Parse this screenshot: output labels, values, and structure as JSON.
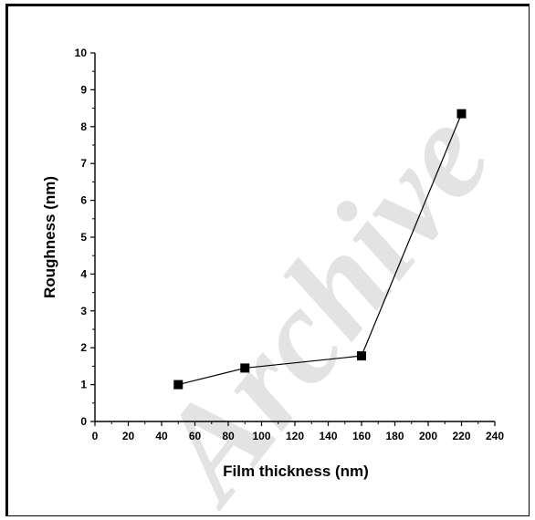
{
  "watermark": "Archive",
  "chart_data": {
    "type": "line",
    "title": "",
    "xlabel": "Film thickness (nm)",
    "ylabel": "Roughness (nm)",
    "xlim": [
      0,
      240
    ],
    "ylim": [
      0,
      10
    ],
    "xticks": [
      0,
      20,
      40,
      60,
      80,
      100,
      120,
      140,
      160,
      180,
      200,
      220,
      240
    ],
    "yticks": [
      0,
      1,
      2,
      3,
      4,
      5,
      6,
      7,
      8,
      9,
      10
    ],
    "grid": false,
    "legend": "none",
    "marker": "square",
    "colors": {
      "line": "#000000",
      "marker": "#000000",
      "watermark": "#e3e3e3"
    },
    "series": [
      {
        "x": [
          50,
          90,
          160,
          220
        ],
        "y": [
          1.0,
          1.45,
          1.78,
          8.35
        ]
      }
    ]
  }
}
